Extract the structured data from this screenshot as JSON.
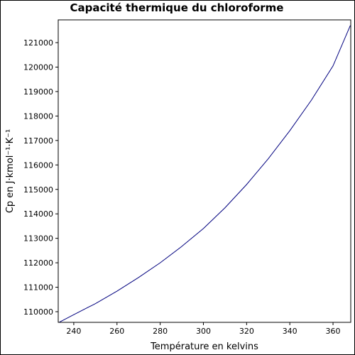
{
  "chart_data": {
    "type": "line",
    "title": "Capacité thermique du chloroforme",
    "x_label": "Température en kelvins",
    "y_label": "Cp en J·kmol⁻¹·K⁻¹",
    "x": [
      233.3,
      240,
      250,
      260,
      270,
      280,
      290,
      300,
      310,
      320,
      330,
      340,
      350,
      360,
      368
    ],
    "series": [
      {
        "color": "#00007f",
        "values": [
          109570,
          109880,
          110330,
          110840,
          111400,
          112000,
          112670,
          113400,
          114250,
          115200,
          116250,
          117400,
          118650,
          120050,
          121700
        ]
      }
    ],
    "xlim": [
      232.8,
      368.2
    ],
    "ylim": [
      109565,
      121930
    ],
    "xticks": [
      240,
      260,
      280,
      300,
      320,
      340,
      360
    ],
    "yticks": [
      110000,
      111000,
      112000,
      113000,
      114000,
      115000,
      116000,
      117000,
      118000,
      119000,
      120000,
      121000
    ]
  }
}
